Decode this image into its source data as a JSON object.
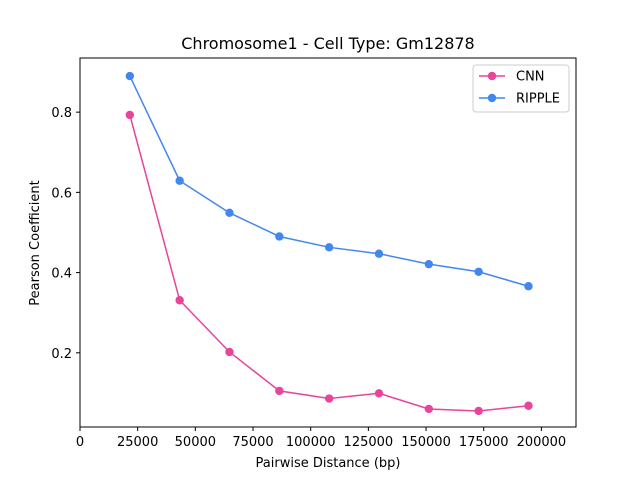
{
  "chart_data": {
    "type": "line",
    "title": "Chromosome1 - Cell Type: Gm12878",
    "xlabel": "Pairwise Distance (bp)",
    "ylabel": "Pearson Coefficient",
    "xlim": [
      0,
      215000
    ],
    "ylim": [
      0.015,
      0.935
    ],
    "xticks": [
      0,
      25000,
      50000,
      75000,
      100000,
      125000,
      150000,
      175000,
      200000
    ],
    "yticks": [
      0.2,
      0.4,
      0.6,
      0.8
    ],
    "ytick_labels": [
      "0.2",
      "0.4",
      "0.6",
      "0.8"
    ],
    "x": [
      21600,
      43200,
      64800,
      86400,
      108000,
      129600,
      151200,
      172800,
      194400
    ],
    "series": [
      {
        "name": "CNN",
        "color": "#e8449a",
        "values": [
          0.793,
          0.331,
          0.202,
          0.105,
          0.086,
          0.099,
          0.06,
          0.055,
          0.068
        ]
      },
      {
        "name": "RIPPLE",
        "color": "#4287f0",
        "values": [
          0.89,
          0.629,
          0.549,
          0.49,
          0.463,
          0.447,
          0.421,
          0.402,
          0.366
        ]
      }
    ],
    "legend_position": "top-right",
    "grid": false
  }
}
